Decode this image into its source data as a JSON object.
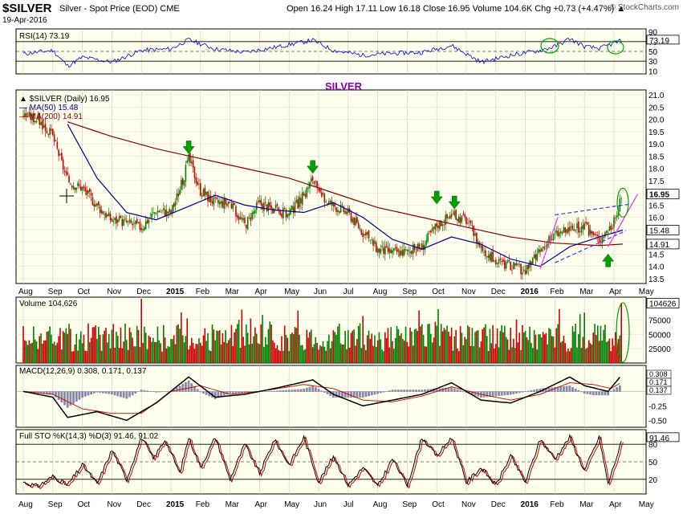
{
  "header": {
    "ticker": "$SILVER",
    "subtitle": "Silver - Spot Price (EOD)  CME",
    "date": "19-Apr-2016",
    "ohlc": "Open 16.24  High 17.11  Low 16.18  Close 16.95  Volume 104.6K  Chg +0.73 (+4.47%) ▲",
    "watermark": "© StockCharts.com"
  },
  "chart_data": {
    "type": "candlestick",
    "title": "$SILVER (Daily) 16.95",
    "annotation": "SILVER",
    "x_labels": [
      "Aug",
      "Sep",
      "Oct",
      "Nov",
      "Dec",
      "2015",
      "Feb",
      "Mar",
      "Apr",
      "May",
      "Jun",
      "Jul",
      "Aug",
      "Sep",
      "Oct",
      "Nov",
      "Dec",
      "2016",
      "Feb",
      "Mar",
      "Apr",
      "May"
    ],
    "price": {
      "ylim": [
        13.3,
        21.2
      ],
      "ticks": [
        13.5,
        14.0,
        14.5,
        15.0,
        15.5,
        16.0,
        16.5,
        17.0,
        17.5,
        18.0,
        18.5,
        19.0,
        19.5,
        20.0,
        20.5,
        21.0
      ],
      "tick_labels": [
        "13.5",
        "14.0",
        "14.5",
        "15.0",
        "15.5",
        "16.0",
        "16.5",
        "17.0",
        "17.5",
        "18.0",
        "18.5",
        "19.0",
        "19.5",
        "20.0",
        "20.5",
        "21.0"
      ],
      "close_path": [
        [
          0,
          20.2
        ],
        [
          0.5,
          20.0
        ],
        [
          1.0,
          19.3
        ],
        [
          1.5,
          17.5
        ],
        [
          2.0,
          17.2
        ],
        [
          2.5,
          16.5
        ],
        [
          3.0,
          15.9
        ],
        [
          3.5,
          15.8
        ],
        [
          4.0,
          15.6
        ],
        [
          4.5,
          16.3
        ],
        [
          5.0,
          16.2
        ],
        [
          5.4,
          17.5
        ],
        [
          5.6,
          18.4
        ],
        [
          6.0,
          17.1
        ],
        [
          6.5,
          16.6
        ],
        [
          7.0,
          16.6
        ],
        [
          7.5,
          15.7
        ],
        [
          8.0,
          16.6
        ],
        [
          8.5,
          16.3
        ],
        [
          9.0,
          16.1
        ],
        [
          9.5,
          16.9
        ],
        [
          9.8,
          17.6
        ],
        [
          10.0,
          16.9
        ],
        [
          10.5,
          16.5
        ],
        [
          11.0,
          16.2
        ],
        [
          11.5,
          15.4
        ],
        [
          12.0,
          14.7
        ],
        [
          12.5,
          14.6
        ],
        [
          13.0,
          14.6
        ],
        [
          13.5,
          14.8
        ],
        [
          14.0,
          15.7
        ],
        [
          14.5,
          16.1
        ],
        [
          15.0,
          15.9
        ],
        [
          15.5,
          14.8
        ],
        [
          16.0,
          14.2
        ],
        [
          16.5,
          14.0
        ],
        [
          17.0,
          13.8
        ],
        [
          17.5,
          14.6
        ],
        [
          18.0,
          15.3
        ],
        [
          18.5,
          15.5
        ],
        [
          19.0,
          15.6
        ],
        [
          19.5,
          15.1
        ],
        [
          20.0,
          15.8
        ],
        [
          20.3,
          16.95
        ]
      ],
      "ma50_path": [
        [
          1.5,
          19.8
        ],
        [
          2.5,
          17.6
        ],
        [
          3.5,
          16.2
        ],
        [
          4.5,
          15.9
        ],
        [
          5.5,
          16.4
        ],
        [
          6.5,
          16.9
        ],
        [
          7.5,
          16.5
        ],
        [
          8.5,
          16.3
        ],
        [
          9.5,
          16.2
        ],
        [
          10.5,
          16.6
        ],
        [
          11.5,
          16.0
        ],
        [
          12.5,
          15.1
        ],
        [
          13.5,
          14.7
        ],
        [
          14.5,
          15.2
        ],
        [
          15.5,
          14.9
        ],
        [
          16.5,
          14.3
        ],
        [
          17.5,
          14.0
        ],
        [
          18.5,
          14.8
        ],
        [
          19.5,
          15.2
        ],
        [
          20.3,
          15.48
        ]
      ],
      "ma200_path": [
        [
          1.5,
          19.9
        ],
        [
          3.0,
          19.3
        ],
        [
          4.5,
          18.8
        ],
        [
          6.0,
          18.4
        ],
        [
          7.5,
          18.0
        ],
        [
          9.0,
          17.6
        ],
        [
          10.5,
          17.0
        ],
        [
          12.0,
          16.4
        ],
        [
          13.5,
          16.0
        ],
        [
          15.0,
          15.6
        ],
        [
          16.5,
          15.2
        ],
        [
          18.0,
          14.95
        ],
        [
          19.5,
          14.85
        ],
        [
          20.3,
          14.91
        ]
      ],
      "markers": [
        {
          "x": 5.6,
          "y": 18.4,
          "dir": "down"
        },
        {
          "x": 9.8,
          "y": 17.6,
          "dir": "down"
        },
        {
          "x": 14.0,
          "y": 16.35,
          "dir": "down"
        },
        {
          "x": 14.6,
          "y": 16.15,
          "dir": "down"
        },
        {
          "x": 19.8,
          "y": 14.7,
          "dir": "up"
        }
      ],
      "tags": [
        {
          "label": "16.95",
          "value": 16.95,
          "bold": true
        },
        {
          "label": "15.48",
          "value": 15.48
        },
        {
          "label": "14.91",
          "value": 14.91
        }
      ],
      "legend": [
        {
          "label": "▲ $SILVER (Daily) 16.95",
          "color": "#000000"
        },
        {
          "label": "— MA(50) 15.48",
          "color": "#00008b"
        },
        {
          "label": "— MA(200) 14.91",
          "color": "#8b0000"
        }
      ]
    },
    "rsi": {
      "label": "RSI(14) 73.19",
      "ticks": [
        90,
        70,
        50,
        30,
        10
      ],
      "tick_labels": [
        "90",
        "70",
        "50",
        "30",
        "10"
      ],
      "last_tag": "73.19",
      "path": [
        [
          0,
          45
        ],
        [
          1.0,
          52
        ],
        [
          1.5,
          20
        ],
        [
          2.0,
          38
        ],
        [
          3.0,
          28
        ],
        [
          4.0,
          52
        ],
        [
          5.0,
          55
        ],
        [
          5.6,
          74
        ],
        [
          6.5,
          55
        ],
        [
          7.5,
          48
        ],
        [
          8.5,
          58
        ],
        [
          9.8,
          73
        ],
        [
          10.5,
          52
        ],
        [
          11.5,
          42
        ],
        [
          12.5,
          46
        ],
        [
          13.5,
          48
        ],
        [
          14.5,
          62
        ],
        [
          15.5,
          28
        ],
        [
          16.5,
          42
        ],
        [
          17.5,
          52
        ],
        [
          18.0,
          60
        ],
        [
          18.5,
          76
        ],
        [
          19.0,
          60
        ],
        [
          19.5,
          56
        ],
        [
          20.3,
          73
        ]
      ]
    },
    "volume": {
      "label": "Volume 104,626",
      "ticks": [
        75000,
        50000,
        25000
      ],
      "tick_labels": [
        "75000",
        "50000",
        "25000"
      ],
      "last_tag": "104626",
      "ylim": [
        0,
        115000
      ]
    },
    "macd": {
      "label": "MACD(12,26,9) 0.308, 0.171, 0.137",
      "ticks": [
        0.25,
        0.0,
        -0.25,
        -0.5
      ],
      "tick_labels": [
        "0.25",
        "0.00",
        "-0.25",
        "-0.50"
      ],
      "tags": [
        "0.308",
        "0.171",
        "0.137"
      ],
      "ylim": [
        -0.62,
        0.45
      ],
      "macd_path": [
        [
          0,
          0.0
        ],
        [
          1.0,
          -0.1
        ],
        [
          1.5,
          -0.45
        ],
        [
          2.5,
          -0.35
        ],
        [
          3.5,
          -0.5
        ],
        [
          4.5,
          -0.2
        ],
        [
          5.6,
          0.25
        ],
        [
          6.5,
          -0.1
        ],
        [
          7.5,
          -0.05
        ],
        [
          8.5,
          0.05
        ],
        [
          9.8,
          0.2
        ],
        [
          10.5,
          -0.05
        ],
        [
          11.5,
          -0.25
        ],
        [
          12.5,
          -0.15
        ],
        [
          13.5,
          -0.05
        ],
        [
          14.5,
          0.15
        ],
        [
          15.5,
          -0.15
        ],
        [
          16.5,
          -0.2
        ],
        [
          17.5,
          0.0
        ],
        [
          18.5,
          0.25
        ],
        [
          19.0,
          0.1
        ],
        [
          19.8,
          0.0
        ],
        [
          20.3,
          0.308
        ]
      ],
      "signal_path": [
        [
          0,
          0.0
        ],
        [
          1.0,
          -0.05
        ],
        [
          2.0,
          -0.3
        ],
        [
          3.0,
          -0.38
        ],
        [
          4.0,
          -0.38
        ],
        [
          5.0,
          0.0
        ],
        [
          6.0,
          0.1
        ],
        [
          7.0,
          -0.05
        ],
        [
          8.0,
          0.0
        ],
        [
          9.5,
          0.12
        ],
        [
          10.5,
          0.05
        ],
        [
          11.5,
          -0.15
        ],
        [
          12.5,
          -0.18
        ],
        [
          13.5,
          -0.08
        ],
        [
          14.5,
          0.08
        ],
        [
          15.5,
          -0.05
        ],
        [
          16.5,
          -0.15
        ],
        [
          17.5,
          -0.05
        ],
        [
          18.5,
          0.15
        ],
        [
          19.3,
          0.12
        ],
        [
          19.9,
          0.05
        ],
        [
          20.3,
          0.171
        ]
      ]
    },
    "sto": {
      "label": "Full STO %K(14,3) %D(3) 91.46, 91.02",
      "ticks": [
        80,
        50,
        20
      ],
      "tick_labels": [
        "80",
        "50",
        "20"
      ],
      "last_tag": "91.46",
      "path": [
        [
          0,
          15
        ],
        [
          0.5,
          8
        ],
        [
          1.0,
          25
        ],
        [
          1.5,
          10
        ],
        [
          2.0,
          45
        ],
        [
          2.5,
          12
        ],
        [
          3.0,
          70
        ],
        [
          3.5,
          20
        ],
        [
          4.0,
          92
        ],
        [
          4.4,
          55
        ],
        [
          4.8,
          88
        ],
        [
          5.3,
          30
        ],
        [
          5.6,
          92
        ],
        [
          6.0,
          40
        ],
        [
          6.5,
          92
        ],
        [
          7.0,
          20
        ],
        [
          7.5,
          80
        ],
        [
          8.0,
          30
        ],
        [
          8.5,
          88
        ],
        [
          9.0,
          45
        ],
        [
          9.5,
          92
        ],
        [
          10.0,
          15
        ],
        [
          10.5,
          60
        ],
        [
          11.0,
          10
        ],
        [
          11.5,
          40
        ],
        [
          12.0,
          8
        ],
        [
          12.5,
          55
        ],
        [
          13.0,
          10
        ],
        [
          13.5,
          92
        ],
        [
          14.0,
          60
        ],
        [
          14.5,
          92
        ],
        [
          15.0,
          15
        ],
        [
          15.5,
          40
        ],
        [
          16.0,
          10
        ],
        [
          16.5,
          60
        ],
        [
          17.0,
          15
        ],
        [
          17.5,
          88
        ],
        [
          18.0,
          55
        ],
        [
          18.5,
          92
        ],
        [
          19.0,
          35
        ],
        [
          19.5,
          92
        ],
        [
          19.8,
          12
        ],
        [
          20.3,
          91.46
        ]
      ]
    }
  }
}
